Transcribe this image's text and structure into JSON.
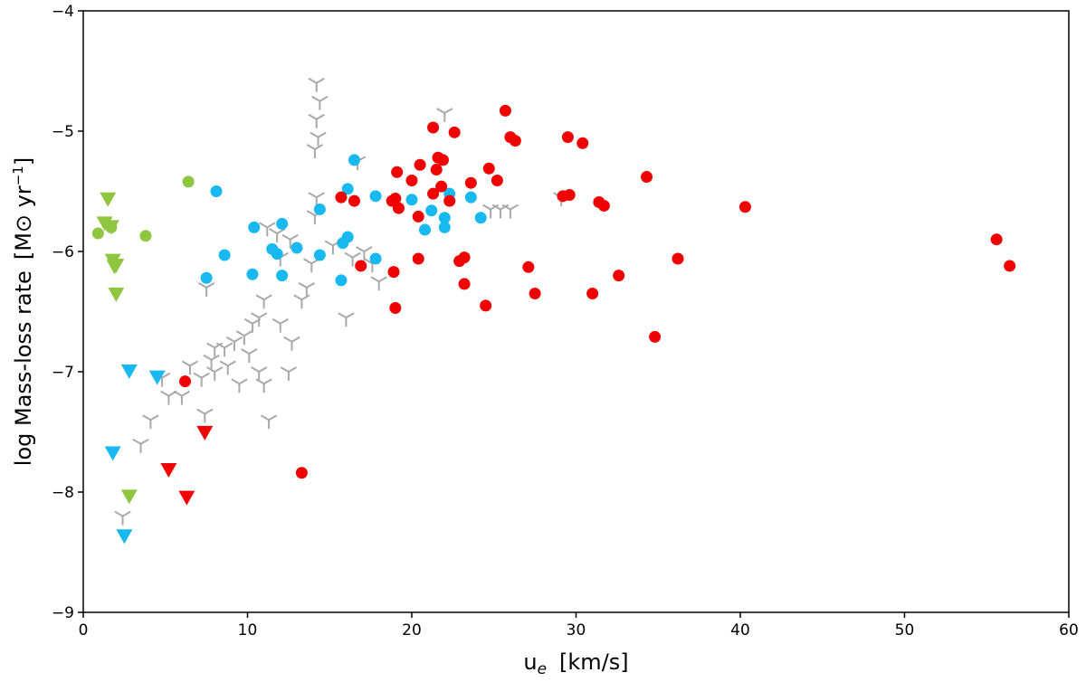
{
  "chart_data": {
    "type": "scatter",
    "xlabel": "u",
    "xlabel_sub": "e",
    "xlabel_unit": "[km/s]",
    "ylabel": "log Mass-loss rate",
    "ylabel_unit": "[M⊙ yr",
    "ylabel_sup": "−1",
    "ylabel_close": "]",
    "xlim": [
      0,
      60
    ],
    "ylim": [
      -9,
      -4
    ],
    "x_ticks": [
      "0",
      "10",
      "20",
      "30",
      "40",
      "50",
      "60"
    ],
    "y_ticks": [
      "−9",
      "−8",
      "−7",
      "−6",
      "−5",
      "−4"
    ],
    "grid": false,
    "colors": {
      "gray": "#a9a9a9",
      "cyan": "#18b8f0",
      "red": "#f00000",
      "green": "#8ec63f"
    },
    "series": [
      {
        "color": "gray",
        "marker": "tri_down",
        "points": [
          [
            14.2,
            -4.6
          ],
          [
            14.4,
            -4.75
          ],
          [
            14.2,
            -4.9
          ],
          [
            14.3,
            -5.05
          ],
          [
            14.1,
            -5.15
          ],
          [
            22.0,
            -4.85
          ],
          [
            29.1,
            -5.55
          ],
          [
            24.8,
            -5.65
          ],
          [
            25.4,
            -5.65
          ],
          [
            26.0,
            -5.65
          ],
          [
            14.2,
            -5.55
          ],
          [
            16.7,
            -5.25
          ],
          [
            14.1,
            -5.7
          ],
          [
            11.2,
            -5.8
          ],
          [
            11.8,
            -5.85
          ],
          [
            12.6,
            -5.9
          ],
          [
            12.0,
            -6.05
          ],
          [
            13.9,
            -6.1
          ],
          [
            16.4,
            -6.05
          ],
          [
            17.1,
            -6.0
          ],
          [
            17.6,
            -6.1
          ],
          [
            18.0,
            -6.25
          ],
          [
            13.6,
            -6.3
          ],
          [
            13.3,
            -6.4
          ],
          [
            11.0,
            -6.4
          ],
          [
            10.7,
            -6.55
          ],
          [
            10.3,
            -6.6
          ],
          [
            12.0,
            -6.6
          ],
          [
            12.7,
            -6.75
          ],
          [
            9.8,
            -6.7
          ],
          [
            9.2,
            -6.75
          ],
          [
            8.6,
            -6.8
          ],
          [
            8.0,
            -6.8
          ],
          [
            7.8,
            -6.9
          ],
          [
            8.8,
            -6.95
          ],
          [
            10.1,
            -6.85
          ],
          [
            10.7,
            -7.0
          ],
          [
            9.5,
            -7.1
          ],
          [
            8.0,
            -7.0
          ],
          [
            7.2,
            -7.05
          ],
          [
            6.5,
            -6.95
          ],
          [
            6.0,
            -7.2
          ],
          [
            5.2,
            -7.2
          ],
          [
            4.8,
            -7.05
          ],
          [
            7.4,
            -7.35
          ],
          [
            4.1,
            -7.4
          ],
          [
            3.5,
            -7.6
          ],
          [
            2.4,
            -8.2
          ],
          [
            16.0,
            -6.55
          ],
          [
            7.5,
            -6.3
          ],
          [
            11.3,
            -7.4
          ],
          [
            12.5,
            -7.0
          ],
          [
            11.0,
            -7.1
          ],
          [
            15.2,
            -5.95
          ]
        ]
      },
      {
        "color": "cyan",
        "marker": "circle",
        "points": [
          [
            16.5,
            -5.24
          ],
          [
            8.1,
            -5.5
          ],
          [
            16.1,
            -5.48
          ],
          [
            14.4,
            -5.65
          ],
          [
            17.8,
            -5.54
          ],
          [
            20.0,
            -5.57
          ],
          [
            22.3,
            -5.52
          ],
          [
            23.6,
            -5.55
          ],
          [
            21.2,
            -5.66
          ],
          [
            22.0,
            -5.72
          ],
          [
            24.2,
            -5.72
          ],
          [
            22.0,
            -5.8
          ],
          [
            20.8,
            -5.82
          ],
          [
            10.4,
            -5.8
          ],
          [
            12.1,
            -5.77
          ],
          [
            16.1,
            -5.88
          ],
          [
            15.8,
            -5.93
          ],
          [
            13.0,
            -5.97
          ],
          [
            11.5,
            -5.98
          ],
          [
            11.8,
            -6.02
          ],
          [
            8.6,
            -6.03
          ],
          [
            14.4,
            -6.03
          ],
          [
            17.8,
            -6.06
          ],
          [
            10.3,
            -6.19
          ],
          [
            12.1,
            -6.2
          ],
          [
            7.5,
            -6.22
          ],
          [
            15.7,
            -6.24
          ]
        ]
      },
      {
        "color": "cyan",
        "marker": "tri_down_filled",
        "points": [
          [
            2.8,
            -7.0
          ],
          [
            4.5,
            -7.05
          ],
          [
            1.8,
            -7.68
          ],
          [
            2.5,
            -8.37
          ]
        ]
      },
      {
        "color": "red",
        "marker": "circle",
        "points": [
          [
            25.7,
            -4.83
          ],
          [
            21.3,
            -4.97
          ],
          [
            22.6,
            -5.01
          ],
          [
            29.5,
            -5.05
          ],
          [
            26.0,
            -5.05
          ],
          [
            26.3,
            -5.08
          ],
          [
            30.4,
            -5.1
          ],
          [
            21.6,
            -5.22
          ],
          [
            21.9,
            -5.24
          ],
          [
            20.5,
            -5.28
          ],
          [
            24.7,
            -5.31
          ],
          [
            21.5,
            -5.32
          ],
          [
            19.1,
            -5.34
          ],
          [
            25.2,
            -5.41
          ],
          [
            20.0,
            -5.41
          ],
          [
            23.6,
            -5.43
          ],
          [
            21.8,
            -5.46
          ],
          [
            21.3,
            -5.52
          ],
          [
            29.2,
            -5.54
          ],
          [
            29.6,
            -5.53
          ],
          [
            34.3,
            -5.38
          ],
          [
            18.8,
            -5.58
          ],
          [
            19.0,
            -5.56
          ],
          [
            15.7,
            -5.55
          ],
          [
            16.5,
            -5.58
          ],
          [
            22.3,
            -5.58
          ],
          [
            31.4,
            -5.59
          ],
          [
            31.7,
            -5.62
          ],
          [
            40.3,
            -5.63
          ],
          [
            19.2,
            -5.64
          ],
          [
            20.4,
            -5.71
          ],
          [
            55.6,
            -5.9
          ],
          [
            36.2,
            -6.06
          ],
          [
            20.4,
            -6.06
          ],
          [
            23.2,
            -6.05
          ],
          [
            22.9,
            -6.08
          ],
          [
            16.9,
            -6.12
          ],
          [
            27.1,
            -6.13
          ],
          [
            56.4,
            -6.12
          ],
          [
            18.9,
            -6.17
          ],
          [
            32.6,
            -6.2
          ],
          [
            23.2,
            -6.27
          ],
          [
            27.5,
            -6.35
          ],
          [
            31.0,
            -6.35
          ],
          [
            24.5,
            -6.45
          ],
          [
            19.0,
            -6.47
          ],
          [
            34.8,
            -6.71
          ],
          [
            6.2,
            -7.08
          ],
          [
            13.3,
            -7.84
          ]
        ]
      },
      {
        "color": "red",
        "marker": "tri_down_filled",
        "points": [
          [
            7.4,
            -7.51
          ],
          [
            5.2,
            -7.82
          ],
          [
            6.3,
            -8.05
          ]
        ]
      },
      {
        "color": "green",
        "marker": "circle",
        "points": [
          [
            6.4,
            -5.42
          ],
          [
            1.7,
            -5.8
          ],
          [
            0.9,
            -5.85
          ],
          [
            3.8,
            -5.87
          ]
        ]
      },
      {
        "color": "green",
        "marker": "tri_down_filled",
        "points": [
          [
            1.5,
            -5.57
          ],
          [
            1.3,
            -5.77
          ],
          [
            1.7,
            -5.8
          ],
          [
            1.8,
            -6.08
          ],
          [
            1.9,
            -6.13
          ],
          [
            2.0,
            -6.12
          ],
          [
            2.0,
            -6.36
          ],
          [
            2.8,
            -8.04
          ]
        ]
      }
    ]
  }
}
